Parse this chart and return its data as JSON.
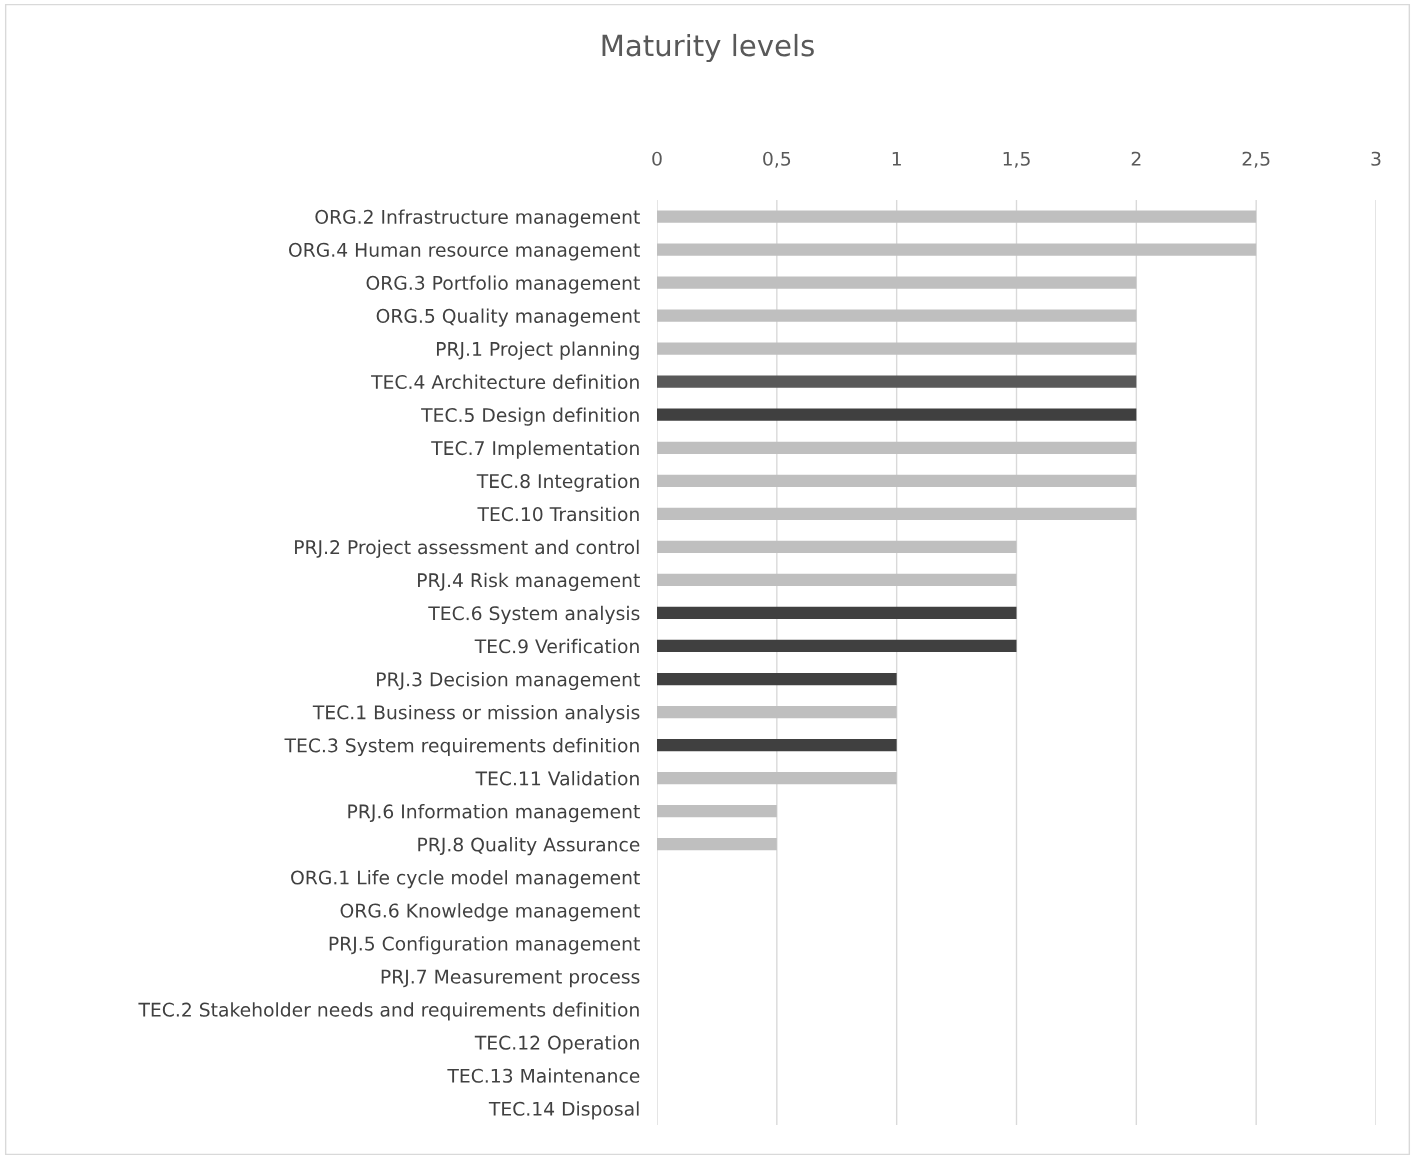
{
  "chart_data": {
    "type": "bar",
    "orientation": "horizontal",
    "title": "Maturity levels",
    "categories": [
      "ORG.2 Infrastructure management",
      "ORG.4 Human resource management",
      "ORG.3 Portfolio management",
      "ORG.5 Quality management",
      "PRJ.1 Project planning",
      "TEC.4 Architecture definition",
      "TEC.5 Design definition",
      "TEC.7 Implementation",
      "TEC.8 Integration",
      "TEC.10 Transition",
      "PRJ.2 Project assessment and control",
      "PRJ.4 Risk management",
      "TEC.6 System analysis",
      "TEC.9 Verification",
      "PRJ.3 Decision management",
      "TEC.1 Business or mission analysis",
      "TEC.3 System requirements definition",
      "TEC.11 Validation",
      "PRJ.6 Information management",
      "PRJ.8 Quality Assurance",
      "ORG.1 Life cycle model management",
      "ORG.6 Knowledge management",
      "PRJ.5 Configuration management",
      "PRJ.7 Measurement process",
      "TEC.2 Stakeholder needs and requirements definition",
      "TEC.12 Operation",
      "TEC.13 Maintenance",
      "TEC.14 Disposal"
    ],
    "values": [
      2.5,
      2.5,
      2,
      2,
      2,
      2,
      2,
      2,
      2,
      2,
      1.5,
      1.5,
      1.5,
      1.5,
      1,
      1,
      1,
      1,
      0.5,
      0.5,
      0,
      0,
      0,
      0,
      0,
      0,
      0,
      0
    ],
    "colors": [
      "#bfbfbf",
      "#bfbfbf",
      "#bfbfbf",
      "#bfbfbf",
      "#bfbfbf",
      "#595959",
      "#404040",
      "#bfbfbf",
      "#bfbfbf",
      "#bfbfbf",
      "#bfbfbf",
      "#bfbfbf",
      "#404040",
      "#404040",
      "#404040",
      "#bfbfbf",
      "#404040",
      "#bfbfbf",
      "#bfbfbf",
      "#bfbfbf",
      "#bfbfbf",
      "#bfbfbf",
      "#bfbfbf",
      "#bfbfbf",
      "#bfbfbf",
      "#bfbfbf",
      "#bfbfbf",
      "#bfbfbf"
    ],
    "xlim": [
      0,
      3
    ],
    "xticks": [
      0,
      {
        "value": 0.5,
        "label": "0,5"
      },
      1,
      {
        "value": 1.5,
        "label": "1,5"
      },
      2,
      {
        "value": 2.5,
        "label": "2,5"
      },
      3
    ],
    "grid": "x"
  }
}
